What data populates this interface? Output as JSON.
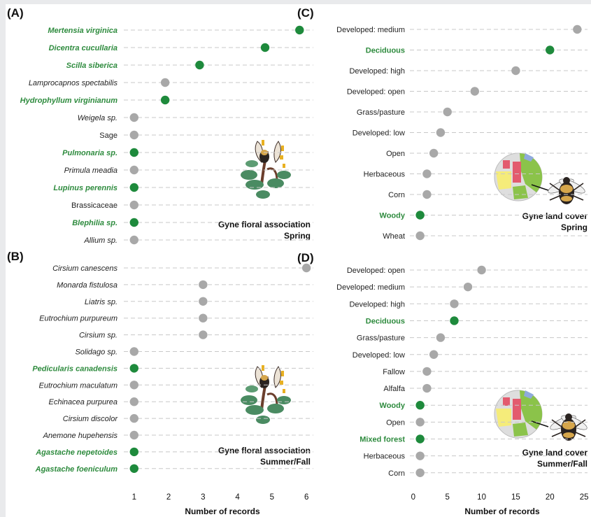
{
  "colors": {
    "native": "#1e8a3c",
    "other": "#a8a8a8",
    "grid": "#c8c8c8",
    "native_label": "#2e8b3e"
  },
  "x_axis_title": "Number of records",
  "chart_data": [
    {
      "panel": "(A)",
      "type": "scatter",
      "inset_title": [
        "Gyne floral association",
        "Spring"
      ],
      "xlim": [
        0.7,
        6.2
      ],
      "xticks": [],
      "categories": [
        {
          "label": "Mertensia virginica",
          "value": 5.8,
          "native": true,
          "italic": true
        },
        {
          "label": "Dicentra cucullaria",
          "value": 4.8,
          "native": true,
          "italic": true
        },
        {
          "label": "Scilla siberica",
          "value": 2.9,
          "native": true,
          "italic": true
        },
        {
          "label": "Lamprocapnos spectabilis",
          "value": 1.9,
          "native": false,
          "italic": true
        },
        {
          "label": "Hydrophyllum virginianum",
          "value": 1.9,
          "native": true,
          "italic": true
        },
        {
          "label": "Weigela sp.",
          "value": 1,
          "native": false,
          "italic": true
        },
        {
          "label": "Sage",
          "value": 1,
          "native": false,
          "italic": false
        },
        {
          "label": "Pulmonaria sp.",
          "value": 1,
          "native": true,
          "italic": true
        },
        {
          "label": "Primula meadia",
          "value": 1,
          "native": false,
          "italic": true
        },
        {
          "label": "Lupinus perennis",
          "value": 1,
          "native": true,
          "italic": true
        },
        {
          "label": "Brassicaceae",
          "value": 1,
          "native": false,
          "italic": false
        },
        {
          "label": "Blephilia sp.",
          "value": 1,
          "native": true,
          "italic": true
        },
        {
          "label": "Allium sp.",
          "value": 1,
          "native": false,
          "italic": true
        }
      ]
    },
    {
      "panel": "(B)",
      "type": "scatter",
      "inset_title": [
        "Gyne floral association",
        "Summer/Fall"
      ],
      "xlim": [
        0.7,
        6.2
      ],
      "xticks": [
        1,
        2,
        3,
        4,
        5,
        6
      ],
      "categories": [
        {
          "label": "Cirsium canescens",
          "value": 6,
          "native": false,
          "italic": true
        },
        {
          "label": "Monarda fistulosa",
          "value": 3,
          "native": false,
          "italic": true
        },
        {
          "label": "Liatris sp.",
          "value": 3,
          "native": false,
          "italic": true
        },
        {
          "label": "Eutrochium purpureum",
          "value": 3,
          "native": false,
          "italic": true
        },
        {
          "label": "Cirsium sp.",
          "value": 3,
          "native": false,
          "italic": true
        },
        {
          "label": "Solidago sp.",
          "value": 1,
          "native": false,
          "italic": true
        },
        {
          "label": "Pedicularis canadensis",
          "value": 1,
          "native": true,
          "italic": true
        },
        {
          "label": "Eutrochium maculatum",
          "value": 1,
          "native": false,
          "italic": true
        },
        {
          "label": "Echinacea purpurea",
          "value": 1,
          "native": false,
          "italic": true
        },
        {
          "label": "Cirsium discolor",
          "value": 1,
          "native": false,
          "italic": true
        },
        {
          "label": "Anemone hupehensis",
          "value": 1,
          "native": false,
          "italic": true
        },
        {
          "label": "Agastache nepetoides",
          "value": 1,
          "native": true,
          "italic": true
        },
        {
          "label": "Agastache foeniculum",
          "value": 1,
          "native": true,
          "italic": true
        }
      ]
    },
    {
      "panel": "(C)",
      "type": "scatter",
      "inset_title": [
        "Gyne land cover",
        "Spring"
      ],
      "xlim": [
        -0.5,
        25.5
      ],
      "xticks": [],
      "categories": [
        {
          "label": "Developed: medium",
          "value": 24,
          "native": false,
          "italic": false
        },
        {
          "label": "Deciduous",
          "value": 20,
          "native": true,
          "italic": false
        },
        {
          "label": "Developed: high",
          "value": 15,
          "native": false,
          "italic": false
        },
        {
          "label": "Developed: open",
          "value": 9,
          "native": false,
          "italic": false
        },
        {
          "label": "Grass/pasture",
          "value": 5,
          "native": false,
          "italic": false
        },
        {
          "label": "Developed: low",
          "value": 4,
          "native": false,
          "italic": false
        },
        {
          "label": "Open",
          "value": 3,
          "native": false,
          "italic": false
        },
        {
          "label": "Herbaceous",
          "value": 2,
          "native": false,
          "italic": false
        },
        {
          "label": "Corn",
          "value": 2,
          "native": false,
          "italic": false
        },
        {
          "label": "Woody",
          "value": 1,
          "native": true,
          "italic": false
        },
        {
          "label": "Wheat",
          "value": 1,
          "native": false,
          "italic": false
        }
      ]
    },
    {
      "panel": "(D)",
      "type": "scatter",
      "inset_title": [
        "Gyne land cover",
        "Summer/Fall"
      ],
      "xlim": [
        -0.5,
        25.5
      ],
      "xticks": [
        0,
        5,
        10,
        15,
        20,
        25
      ],
      "categories": [
        {
          "label": "Developed: open",
          "value": 10,
          "native": false,
          "italic": false
        },
        {
          "label": "Developed: medium",
          "value": 8,
          "native": false,
          "italic": false
        },
        {
          "label": "Developed: high",
          "value": 6,
          "native": false,
          "italic": false
        },
        {
          "label": "Deciduous",
          "value": 6,
          "native": true,
          "italic": false
        },
        {
          "label": "Grass/pasture",
          "value": 4,
          "native": false,
          "italic": false
        },
        {
          "label": "Developed: low",
          "value": 3,
          "native": false,
          "italic": false
        },
        {
          "label": "Fallow",
          "value": 2,
          "native": false,
          "italic": false
        },
        {
          "label": "Alfalfa",
          "value": 2,
          "native": false,
          "italic": false
        },
        {
          "label": "Woody",
          "value": 1,
          "native": true,
          "italic": false
        },
        {
          "label": "Open",
          "value": 1,
          "native": false,
          "italic": false
        },
        {
          "label": "Mixed forest",
          "value": 1,
          "native": true,
          "italic": false
        },
        {
          "label": "Herbaceous",
          "value": 1,
          "native": false,
          "italic": false
        },
        {
          "label": "Corn",
          "value": 1,
          "native": false,
          "italic": false
        }
      ]
    }
  ]
}
